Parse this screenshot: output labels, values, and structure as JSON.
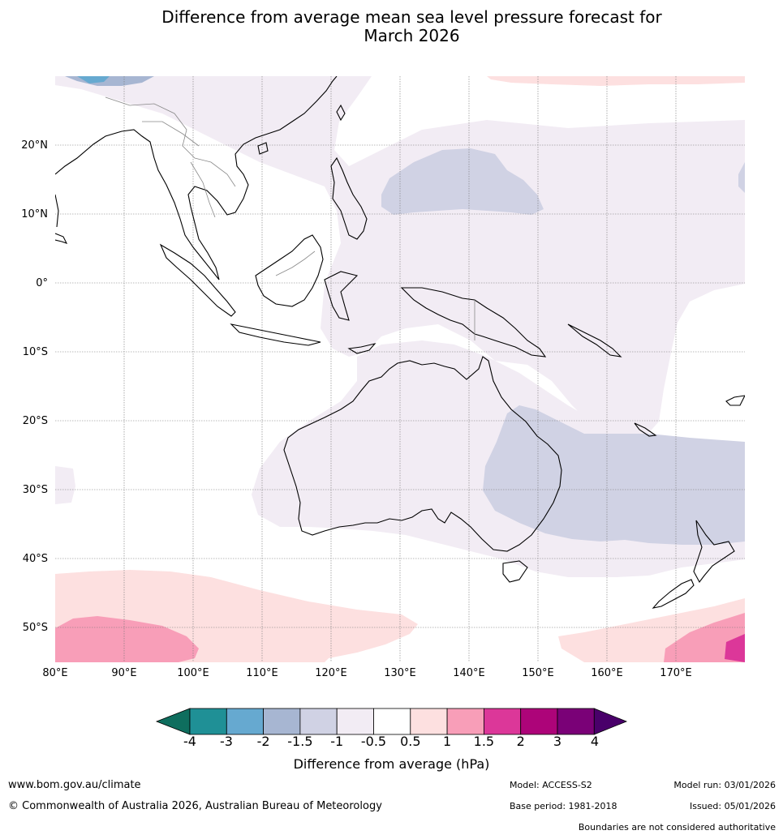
{
  "title_line1": "Difference from average mean sea level pressure forecast for",
  "title_line2": "March 2026",
  "latitude_labels": [
    "20°N",
    "10°N",
    "0°",
    "10°S",
    "20°S",
    "30°S",
    "40°S",
    "50°S"
  ],
  "longitude_labels": [
    "80°E",
    "90°E",
    "100°E",
    "110°E",
    "120°E",
    "130°E",
    "140°E",
    "150°E",
    "160°E",
    "170°E"
  ],
  "map_extent": {
    "lon_min": 80,
    "lon_max": 180,
    "lat_min": -55,
    "lat_max": 30
  },
  "colorbar": {
    "tick_labels": [
      "-4",
      "-3",
      "-2",
      "-1.5",
      "-1",
      "-0.5",
      "0.5",
      "1",
      "1.5",
      "2",
      "3",
      "4"
    ],
    "colors": [
      "#0e6e5e",
      "#1f9096",
      "#66a9d0",
      "#a7b6d2",
      "#d0d2e4",
      "#f2ecf4",
      "#ffffff",
      "#fde0e0",
      "#f89eb8",
      "#dc3799",
      "#ad0479",
      "#7a0177",
      "#49006a"
    ],
    "label": "Difference from average (hPa)"
  },
  "footer": {
    "website": "www.bom.gov.au/climate",
    "copyright": "© Commonwealth of Australia 2026, Australian Bureau of Meteorology",
    "model": "Model: ACCESS-S2",
    "base_period": "Base period: 1981-2018",
    "model_run": "Model run: 03/01/2026",
    "issued": "Issued: 05/01/2026",
    "disclaimer": "Boundaries are not considered authoritative"
  }
}
